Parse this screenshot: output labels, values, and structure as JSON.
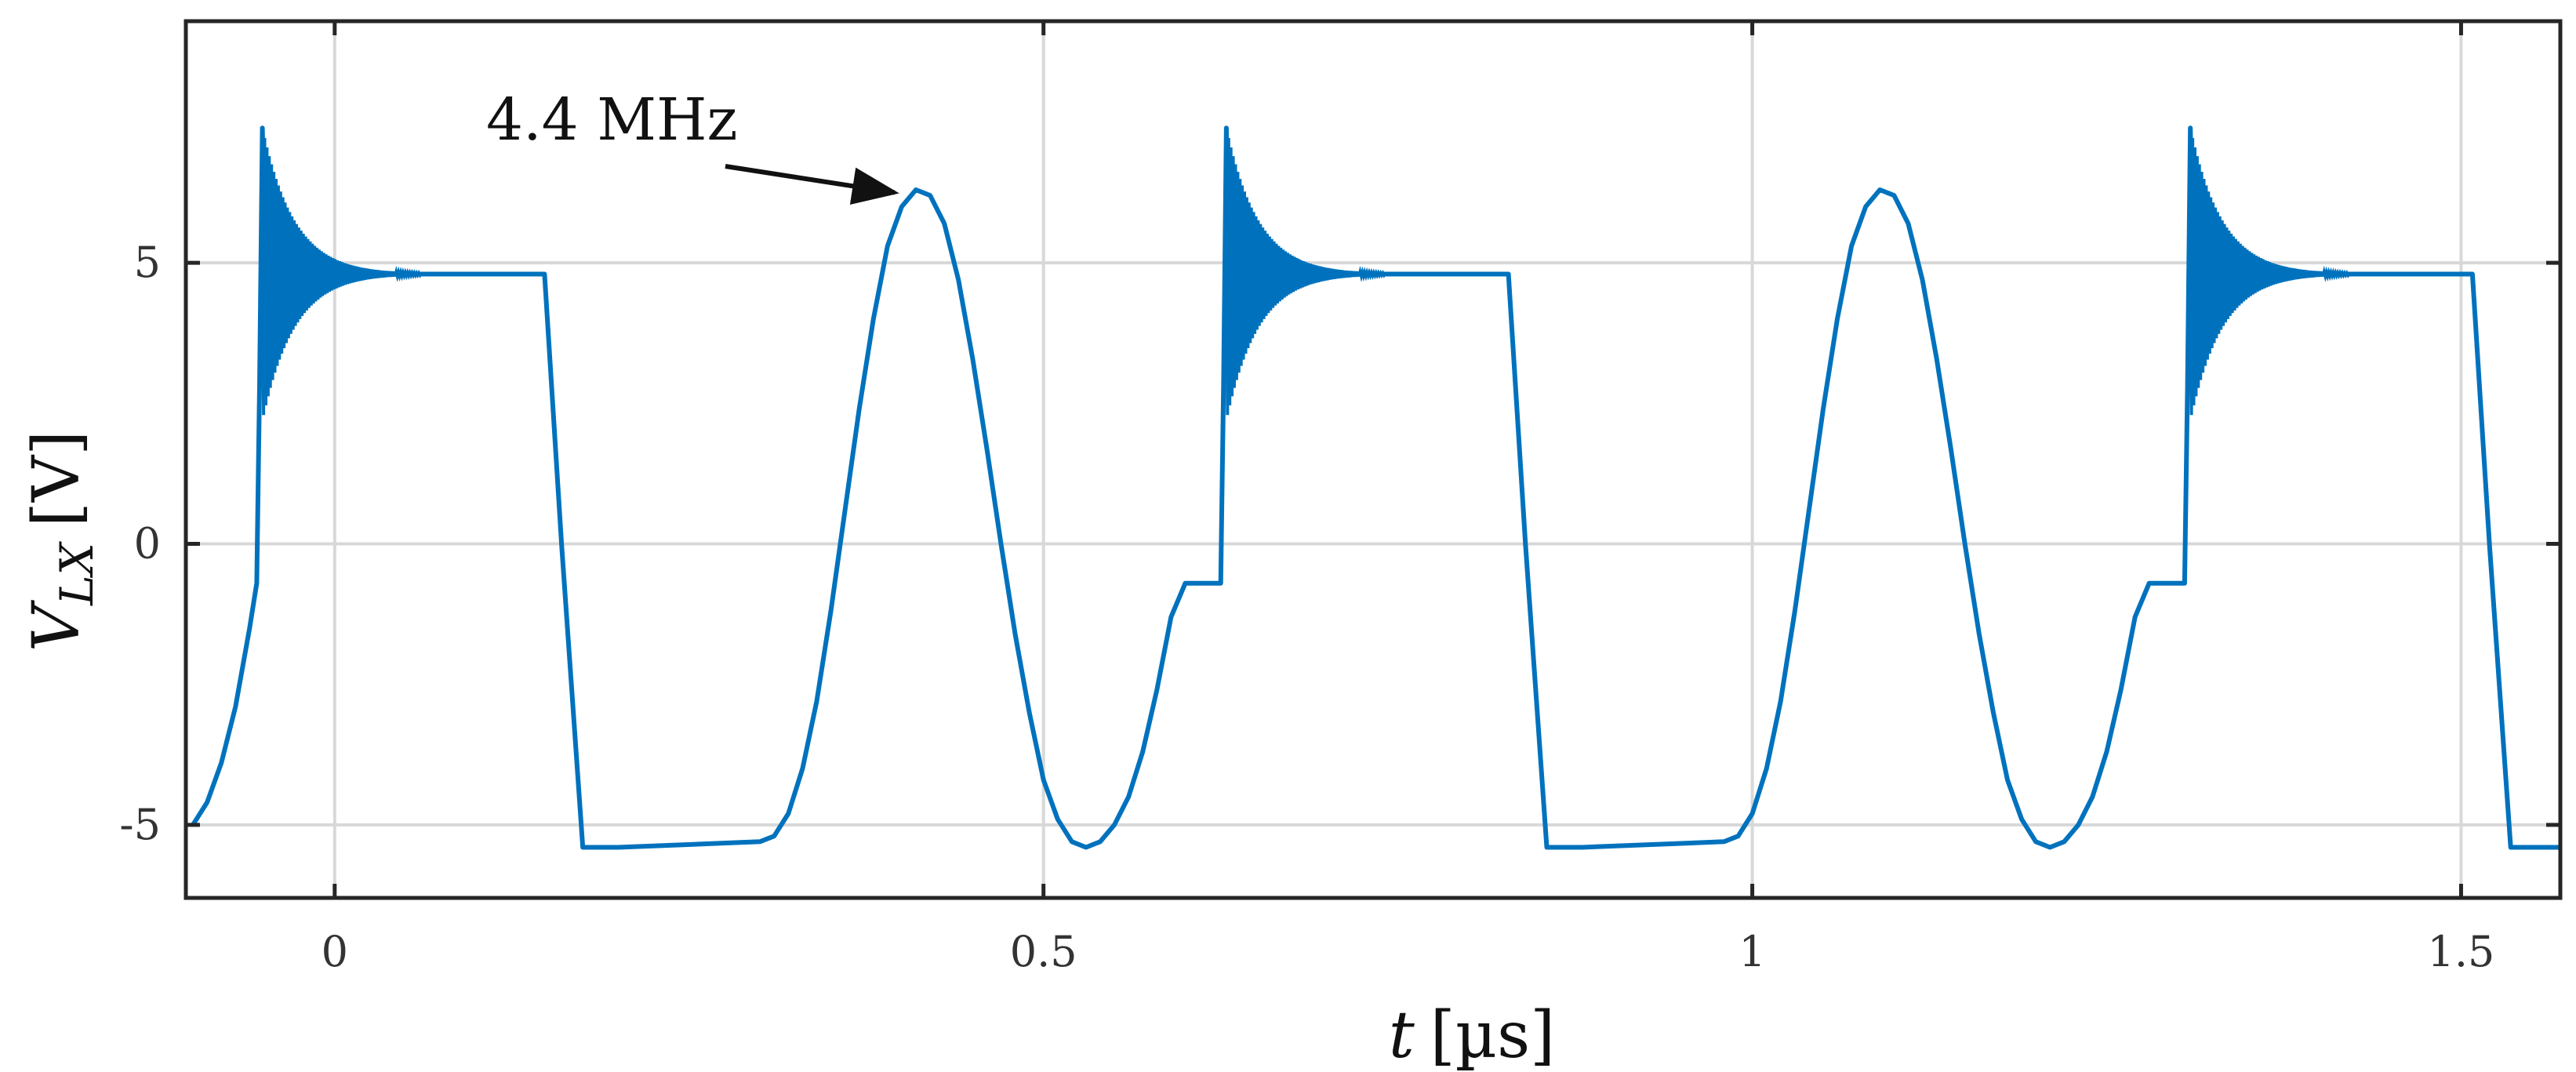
{
  "chart_data": {
    "type": "line",
    "title": "",
    "xlabel_var": "t",
    "xlabel_unit": "[µs]",
    "ylabel_var": "V",
    "ylabel_sub": "LX",
    "ylabel_unit": "[V]",
    "xlim": [
      -0.105,
      1.57
    ],
    "ylim": [
      -6.3,
      9.3
    ],
    "xticks": [
      0,
      0.5,
      1,
      1.5
    ],
    "xtick_labels": [
      "0",
      "0.5",
      "1",
      "1.5"
    ],
    "yticks": [
      -5,
      0,
      5
    ],
    "ytick_labels": [
      "-5",
      "0",
      "5"
    ],
    "grid": true,
    "annotation": {
      "text": "4.4 MHz",
      "arrow_to": {
        "x": 0.395,
        "y": 6.25
      }
    },
    "period_us": 0.68,
    "series": [
      {
        "color": "#0072BD",
        "x": [
          -0.1,
          -0.09,
          -0.08,
          -0.07,
          -0.06,
          -0.055,
          -0.053,
          -0.051,
          -0.049,
          0.0,
          0.05,
          0.1,
          0.148,
          0.16,
          0.175,
          0.2,
          0.3,
          0.31,
          0.32,
          0.33,
          0.34,
          0.35,
          0.36,
          0.37,
          0.38,
          0.39,
          0.4,
          0.41,
          0.42,
          0.43,
          0.44,
          0.45,
          0.46,
          0.47,
          0.48,
          0.49,
          0.5,
          0.51,
          0.52,
          0.53,
          0.54,
          0.55,
          0.56,
          0.57,
          0.58,
          0.59,
          0.6,
          0.61,
          0.62,
          0.625,
          0.627,
          0.629,
          0.631,
          0.68,
          0.73,
          0.78,
          0.828,
          0.84,
          0.855,
          0.88,
          0.98,
          0.99,
          1.0,
          1.01,
          1.02,
          1.03,
          1.04,
          1.05,
          1.06,
          1.07,
          1.08,
          1.09,
          1.1,
          1.11,
          1.12,
          1.13,
          1.14,
          1.15,
          1.16,
          1.17,
          1.18,
          1.19,
          1.2,
          1.21,
          1.22,
          1.23,
          1.24,
          1.25,
          1.26,
          1.27,
          1.28,
          1.29,
          1.3,
          1.305,
          1.307,
          1.309,
          1.311,
          1.36,
          1.41,
          1.46,
          1.508,
          1.52,
          1.535,
          1.57
        ],
        "y": [
          -5.0,
          -4.6,
          -3.9,
          -2.9,
          -1.5,
          -0.7,
          2.8,
          7.4,
          4.9,
          4.85,
          4.8,
          4.8,
          4.8,
          0.0,
          -5.4,
          -5.4,
          -5.3,
          -5.2,
          -4.8,
          -4.0,
          -2.8,
          -1.2,
          0.6,
          2.4,
          4.0,
          5.3,
          6.0,
          6.3,
          6.2,
          5.7,
          4.7,
          3.3,
          1.7,
          0.0,
          -1.6,
          -3.0,
          -4.2,
          -4.9,
          -5.3,
          -5.4,
          -5.3,
          -5.0,
          -4.5,
          -3.7,
          -2.6,
          -1.3,
          -0.7,
          -0.7,
          -0.7,
          -0.7,
          2.8,
          7.4,
          4.9,
          4.85,
          4.8,
          4.8,
          4.8,
          0.0,
          -5.4,
          -5.4,
          -5.3,
          -5.2,
          -4.8,
          -4.0,
          -2.8,
          -1.2,
          0.6,
          2.4,
          4.0,
          5.3,
          6.0,
          6.3,
          6.2,
          5.7,
          4.7,
          3.3,
          1.7,
          0.0,
          -1.6,
          -3.0,
          -4.2,
          -4.9,
          -5.3,
          -5.4,
          -5.3,
          -5.0,
          -4.5,
          -3.7,
          -2.6,
          -1.3,
          -0.7,
          -0.7,
          -0.7,
          -0.7,
          2.8,
          7.4,
          4.9,
          4.85,
          4.8,
          4.8,
          4.8,
          0.0,
          -5.4,
          -5.4
        ]
      }
    ]
  }
}
